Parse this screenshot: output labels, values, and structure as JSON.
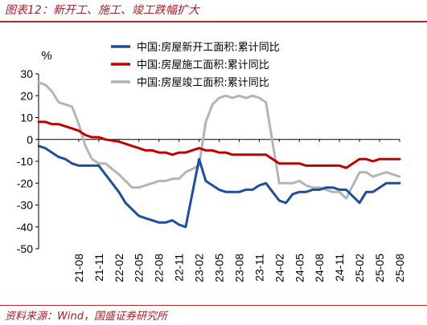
{
  "header": {
    "title": "图表12：新开工、施工、竣工跌幅扩大"
  },
  "footer": {
    "source": "资料来源：Wind，国盛证券研究所"
  },
  "chart_data": {
    "type": "line",
    "unit_label": "%",
    "ylim": [
      -50,
      30
    ],
    "yticks": [
      30,
      20,
      10,
      0,
      -10,
      -20,
      -30,
      -40,
      -50
    ],
    "x": [
      "21-02",
      "21-03",
      "21-04",
      "21-05",
      "21-06",
      "21-07",
      "21-08",
      "21-09",
      "21-10",
      "21-11",
      "21-12",
      "22-01",
      "22-02",
      "22-03",
      "22-04",
      "22-05",
      "22-06",
      "22-07",
      "22-08",
      "22-09",
      "22-10",
      "22-11",
      "22-12",
      "23-01",
      "23-02",
      "23-03",
      "23-04",
      "23-05",
      "23-06",
      "23-07",
      "23-08",
      "23-09",
      "23-10",
      "23-11",
      "23-12",
      "24-01",
      "24-02",
      "24-03",
      "24-04",
      "24-05",
      "24-06",
      "24-07",
      "24-08",
      "24-09",
      "24-10",
      "24-11",
      "24-12",
      "25-01",
      "25-02",
      "25-03",
      "25-04",
      "25-05",
      "25-06",
      "25-07",
      "25-08"
    ],
    "xtick_labels": [
      "21-08",
      "21-11",
      "22-02",
      "22-05",
      "22-08",
      "22-11",
      "23-02",
      "23-05",
      "23-08",
      "23-11",
      "24-02",
      "24-05",
      "24-08",
      "24-11",
      "25-02",
      "25-05",
      "25-08"
    ],
    "legend_position": "top-right",
    "series": [
      {
        "name": "中国:房屋新开工面积:累计同比",
        "color": "#1f4e9a",
        "values": [
          -3,
          -4,
          -6,
          -8,
          -9,
          -11,
          -12,
          -12,
          -12,
          -12,
          -16,
          null,
          -24,
          -29,
          -32,
          -35,
          -36,
          -37,
          -38,
          -38,
          -37,
          -39,
          -40,
          null,
          -9,
          -19,
          -21,
          -23,
          -24,
          -24,
          -24,
          -23,
          -23,
          -21,
          -20,
          null,
          -28,
          -29,
          -25,
          -24,
          -24,
          -23,
          -23,
          -22,
          -22,
          -23,
          -23,
          null,
          -29,
          -24,
          -24,
          -22,
          -20,
          -20,
          -20
        ]
      },
      {
        "name": "中国:房屋施工面积:累计同比",
        "color": "#c00000",
        "values": [
          8,
          8,
          7,
          7,
          6,
          5,
          4,
          2,
          1,
          1,
          0,
          null,
          -1,
          -2,
          -3,
          -4,
          -5,
          -5,
          -6,
          -6,
          -7,
          -6,
          -6,
          null,
          -4,
          -5,
          -5,
          -6,
          -6,
          -7,
          -7,
          -7,
          -7,
          -7,
          -7,
          null,
          -11,
          -11,
          -11,
          -11,
          -12,
          -12,
          -12,
          -12,
          -12,
          -12,
          -13,
          null,
          -9,
          -9,
          -10,
          -9,
          -9,
          -9,
          -9
        ]
      },
      {
        "name": "中国:房屋竣工面积:累计同比",
        "color": "#b4b4b4",
        "values": [
          26,
          25,
          22,
          17,
          16,
          15,
          7,
          -3,
          -9,
          -11,
          -11,
          null,
          -16,
          -19,
          -22,
          -22,
          -21,
          -20,
          -19,
          -19,
          -18,
          -18,
          -15,
          null,
          -12,
          8,
          16,
          19,
          20,
          19,
          20,
          19,
          20,
          19,
          17,
          null,
          -20,
          -20,
          -20,
          -19,
          -21,
          -22,
          -22,
          -23,
          -24,
          -24,
          -27,
          null,
          -15,
          -15,
          -17,
          -16,
          -15,
          -16,
          -17
        ]
      }
    ]
  }
}
